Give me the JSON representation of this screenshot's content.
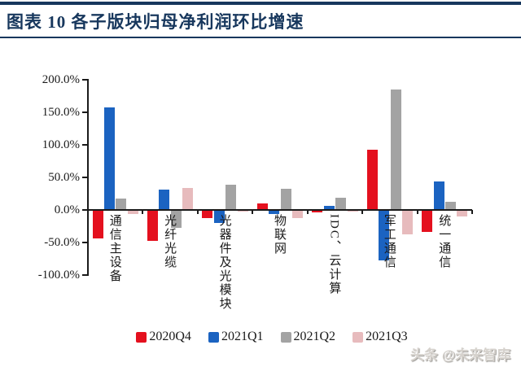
{
  "header": {
    "title": "图表 10   各子版块归母净利润环比增速"
  },
  "watermark": "头条 @未来智库",
  "colors": {
    "accent_blue": "#17375d",
    "axis": "#1a1a1a",
    "series_2020Q4": "#e4101e",
    "series_2021Q1": "#1b63c1",
    "series_2021Q2": "#a3a3a3",
    "series_2021Q3": "#e7bbbd"
  },
  "chart_data": {
    "type": "bar",
    "title": "各子版块归母净利润环比增速",
    "categories": [
      "通信主设备",
      "光纤光缆",
      "光器件及光模块",
      "物联网",
      "IDC、云计算",
      "军工通信",
      "统一通信"
    ],
    "series": [
      {
        "name": "2020Q4",
        "color": "#e4101e",
        "values": [
          -44,
          -47,
          -13,
          10,
          -4,
          92,
          -34
        ]
      },
      {
        "name": "2021Q1",
        "color": "#1b63c1",
        "values": [
          157,
          31,
          -20,
          -6,
          6,
          -77,
          44
        ]
      },
      {
        "name": "2021Q2",
        "color": "#a3a3a3",
        "values": [
          18,
          -27,
          39,
          33,
          19,
          185,
          13
        ]
      },
      {
        "name": "2021Q3",
        "color": "#e7bbbd",
        "values": [
          -6,
          34,
          -3,
          -13,
          -2,
          -38,
          -10
        ]
      }
    ],
    "value_unit": "%",
    "ylim": [
      -100,
      200
    ],
    "ytick_step": 50,
    "ytick_labels": [
      "200.0%",
      "150.0%",
      "100.0%",
      "50.0%",
      "0.0%",
      "-50.0%",
      "-100.0%"
    ],
    "grid": false,
    "legend_position": "bottom"
  }
}
